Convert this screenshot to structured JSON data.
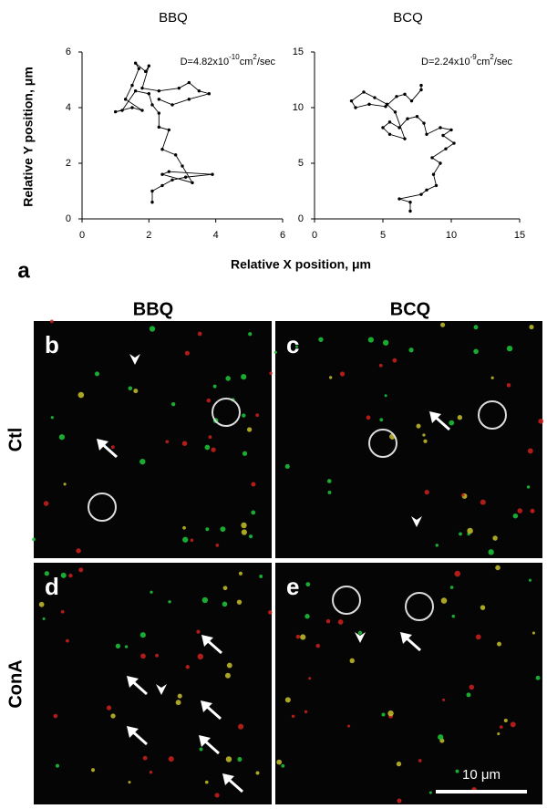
{
  "chart_data": [
    {
      "type": "line",
      "title": "BBQ",
      "y_label": "Relative Y position, μm",
      "annotation": {
        "base": "D=4.82x10",
        "exp": "-10",
        "unit": "cm",
        "unit_exp": "2",
        "rest": "/sec"
      },
      "color": "#000000",
      "xlim": [
        0,
        6
      ],
      "ylim": [
        0,
        6
      ],
      "xticks": [
        0,
        2,
        4,
        6
      ],
      "yticks": [
        0,
        2,
        4,
        6
      ],
      "grid": false,
      "x": [
        2.1,
        2.1,
        2.4,
        2.7,
        3.1,
        3.9,
        2.6,
        2.4,
        3.3,
        3.0,
        2.8,
        2.4,
        2.6,
        2.3,
        2.3,
        2.1,
        2.0,
        1.6,
        1.2,
        1.0,
        1.5,
        1.8,
        1.3,
        1.5,
        1.7,
        1.6,
        1.9,
        2.0,
        1.8,
        2.3,
        2.9,
        3.2,
        3.5,
        3.8,
        3.2,
        2.7,
        2.3
      ],
      "values": [
        0.6,
        1.0,
        1.2,
        1.4,
        1.5,
        1.6,
        1.7,
        1.6,
        1.3,
        1.9,
        2.3,
        2.5,
        3.2,
        3.3,
        3.8,
        4.1,
        4.5,
        4.6,
        3.9,
        3.85,
        4.0,
        3.9,
        4.3,
        4.8,
        5.4,
        5.6,
        5.3,
        5.5,
        4.7,
        4.6,
        4.7,
        4.9,
        4.6,
        4.5,
        4.3,
        4.1,
        4.3
      ]
    },
    {
      "type": "line",
      "title": "BCQ",
      "annotation": {
        "base": "D=2.24x10",
        "exp": "-9",
        "unit": "cm",
        "unit_exp": "2",
        "rest": "/sec"
      },
      "color": "#000000",
      "xlim": [
        0,
        15
      ],
      "ylim": [
        0,
        15
      ],
      "xticks": [
        0,
        5,
        10,
        15
      ],
      "yticks": [
        0,
        5,
        10,
        15
      ],
      "grid": false,
      "x": [
        7.0,
        7.0,
        6.2,
        7.8,
        8.2,
        8.9,
        8.7,
        9.2,
        8.6,
        9.6,
        10.2,
        9.4,
        10.0,
        9.2,
        8.2,
        8.0,
        7.5,
        6.8,
        6.2,
        5.5,
        5.0,
        5.5,
        6.6,
        5.9,
        5.3,
        4.4,
        3.6,
        2.7,
        3.0,
        4.0,
        5.2,
        6.0,
        6.6,
        7.1,
        7.8,
        7.8
      ],
      "values": [
        0.7,
        1.5,
        1.8,
        2.2,
        2.6,
        3.0,
        4.0,
        5.0,
        5.5,
        6.3,
        6.8,
        7.5,
        8.0,
        8.2,
        7.6,
        8.6,
        9.2,
        9.0,
        8.2,
        8.7,
        8.2,
        7.6,
        7.2,
        9.6,
        10.3,
        10.9,
        11.4,
        10.6,
        10.0,
        10.3,
        10.1,
        11.0,
        11.2,
        10.6,
        11.6,
        12.0
      ]
    }
  ],
  "x_label": "Relative X position, μm",
  "panel_label": "a",
  "micrographs": {
    "columns": [
      "BBQ",
      "BCQ"
    ],
    "rows": [
      "Ctl",
      "ConA"
    ],
    "panels": [
      "b",
      "c",
      "d",
      "e"
    ],
    "scale_bar": "10 μm"
  }
}
